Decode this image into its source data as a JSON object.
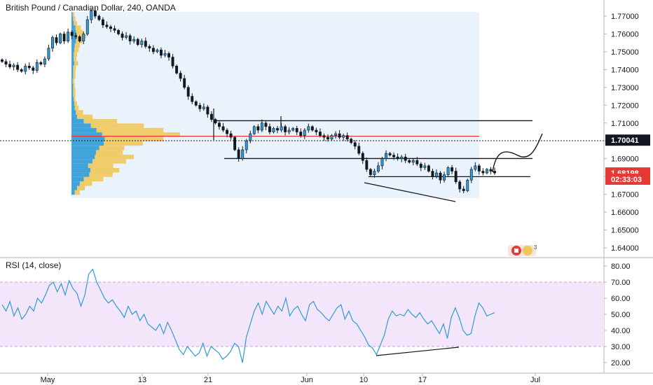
{
  "chart_data": [
    {
      "type": "candlestick",
      "title": "British Pound / Canadian Dollar, 240, OANDA",
      "price_axis": {
        "ticks": [
          "1.77000",
          "1.76000",
          "1.75000",
          "1.74000",
          "1.73000",
          "1.72000",
          "1.71000",
          "1.70000",
          "1.69000",
          "1.68000",
          "1.67000",
          "1.66000",
          "1.65000",
          "1.64000"
        ],
        "range": [
          1.633,
          1.778
        ]
      },
      "time_axis": {
        "ticks": [
          "May",
          "13",
          "21",
          "Jun",
          "10",
          "17",
          "Jul"
        ]
      },
      "price_labels": [
        {
          "text": "1.70041",
          "value": 1.70041,
          "style": "dark"
        },
        {
          "text": "1.68198",
          "value": 1.68198,
          "style": "red"
        },
        {
          "text": "02:33:03",
          "value": 1.6785,
          "style": "red"
        }
      ],
      "levels": [
        {
          "kind": "resistance",
          "value": 1.7113,
          "color": "#131722"
        },
        {
          "kind": "poc",
          "value": 1.7026,
          "color": "#e53935"
        },
        {
          "kind": "support",
          "value": 1.6901,
          "color": "#131722"
        },
        {
          "kind": "support",
          "value": 1.6799,
          "color": "#131722"
        }
      ],
      "series": [
        {
          "values": [
            1.7445,
            1.743,
            1.7415,
            1.7425,
            1.74,
            1.739,
            1.742,
            1.741,
            1.7395,
            1.744,
            1.743,
            1.746,
            1.752,
            1.758,
            1.755,
            1.76,
            1.756,
            1.761,
            1.759,
            1.7585,
            1.756,
            1.76,
            1.768,
            1.773,
            1.77,
            1.768,
            1.765,
            1.764,
            1.763,
            1.762,
            1.76,
            1.758,
            1.759,
            1.756,
            1.757,
            1.754,
            1.756,
            1.753,
            1.752,
            1.75,
            1.751,
            1.748,
            1.749,
            1.747,
            1.742,
            1.738,
            1.735,
            1.73,
            1.725,
            1.722,
            1.72,
            1.718,
            1.719,
            1.715,
            1.712,
            1.71,
            1.708,
            1.706,
            1.704,
            1.702,
            1.695,
            1.69,
            1.695,
            1.7,
            1.704,
            1.708,
            1.706,
            1.71,
            1.708,
            1.705,
            1.707,
            1.706,
            1.708,
            1.705,
            1.706,
            1.707,
            1.705,
            1.703,
            1.706,
            1.708,
            1.706,
            1.705,
            1.703,
            1.702,
            1.701,
            1.703,
            1.704,
            1.702,
            1.703,
            1.701,
            1.699,
            1.697,
            1.693,
            1.689,
            1.684,
            1.681,
            1.683,
            1.686,
            1.69,
            1.693,
            1.692,
            1.691,
            1.69,
            1.691,
            1.689,
            1.688,
            1.689,
            1.687,
            1.685,
            1.686,
            1.683,
            1.68,
            1.682,
            1.678,
            1.681,
            1.685,
            1.683,
            1.677,
            1.673,
            1.672,
            1.678,
            1.684,
            1.686,
            1.683,
            1.682,
            1.684,
            1.683,
            1.682
          ]
        }
      ],
      "volume_profile": {
        "range": [
          1.669,
          1.771
        ],
        "up_color": "#f0c65a",
        "down_color": "#2e9bd6",
        "bins": [
          {
            "price": 1.771,
            "up": 3,
            "down": 2
          },
          {
            "price": 1.7685,
            "up": 4,
            "down": 3
          },
          {
            "price": 1.766,
            "up": 6,
            "down": 4
          },
          {
            "price": 1.7635,
            "up": 10,
            "down": 7
          },
          {
            "price": 1.761,
            "up": 13,
            "down": 8
          },
          {
            "price": 1.7585,
            "up": 16,
            "down": 10
          },
          {
            "price": 1.756,
            "up": 12,
            "down": 8
          },
          {
            "price": 1.7535,
            "up": 9,
            "down": 6
          },
          {
            "price": 1.751,
            "up": 8,
            "down": 5
          },
          {
            "price": 1.7485,
            "up": 6,
            "down": 4
          },
          {
            "price": 1.746,
            "up": 5,
            "down": 4
          },
          {
            "price": 1.7435,
            "up": 7,
            "down": 5
          },
          {
            "price": 1.741,
            "up": 5,
            "down": 3
          },
          {
            "price": 1.7385,
            "up": 4,
            "down": 3
          },
          {
            "price": 1.736,
            "up": 4,
            "down": 3
          },
          {
            "price": 1.7335,
            "up": 3,
            "down": 2
          },
          {
            "price": 1.731,
            "up": 3,
            "down": 3
          },
          {
            "price": 1.7285,
            "up": 4,
            "down": 3
          },
          {
            "price": 1.726,
            "up": 4,
            "down": 3
          },
          {
            "price": 1.7235,
            "up": 3,
            "down": 4
          },
          {
            "price": 1.721,
            "up": 5,
            "down": 5
          },
          {
            "price": 1.7185,
            "up": 7,
            "down": 6
          },
          {
            "price": 1.716,
            "up": 13,
            "down": 8
          },
          {
            "price": 1.7135,
            "up": 28,
            "down": 10
          },
          {
            "price": 1.711,
            "up": 60,
            "down": 22
          },
          {
            "price": 1.7085,
            "up": 95,
            "down": 35
          },
          {
            "price": 1.706,
            "up": 120,
            "down": 45
          },
          {
            "price": 1.7035,
            "up": 140,
            "down": 55
          },
          {
            "price": 1.701,
            "up": 105,
            "down": 60
          },
          {
            "price": 1.6985,
            "up": 70,
            "down": 58
          },
          {
            "price": 1.696,
            "up": 45,
            "down": 50
          },
          {
            "price": 1.6935,
            "up": 48,
            "down": 44
          },
          {
            "price": 1.691,
            "up": 70,
            "down": 42
          },
          {
            "price": 1.6885,
            "up": 60,
            "down": 38
          },
          {
            "price": 1.686,
            "up": 45,
            "down": 30
          },
          {
            "price": 1.6835,
            "up": 52,
            "down": 34
          },
          {
            "price": 1.681,
            "up": 42,
            "down": 32
          },
          {
            "price": 1.6785,
            "up": 35,
            "down": 22
          },
          {
            "price": 1.676,
            "up": 22,
            "down": 15
          },
          {
            "price": 1.6735,
            "up": 14,
            "down": 10
          },
          {
            "price": 1.671,
            "up": 9,
            "down": 6
          }
        ]
      }
    },
    {
      "type": "line",
      "title": "RSI (14, close)",
      "y_axis": {
        "ticks": [
          "80.00",
          "70.00",
          "60.00",
          "50.00",
          "40.00",
          "30.00",
          "20.00"
        ],
        "range": [
          14,
          87
        ]
      },
      "band": [
        30,
        70
      ],
      "line_color": "#2e9bd6",
      "series": [
        {
          "values": [
            56,
            52,
            58,
            49,
            54,
            47,
            50,
            55,
            52,
            60,
            57,
            62,
            68,
            70,
            64,
            69,
            62,
            71,
            66,
            63,
            55,
            62,
            75,
            78,
            70,
            65,
            60,
            57,
            59,
            55,
            52,
            48,
            55,
            50,
            52,
            46,
            50,
            44,
            42,
            40,
            44,
            38,
            45,
            40,
            34,
            28,
            25,
            30,
            27,
            24,
            26,
            32,
            24,
            30,
            28,
            26,
            22,
            24,
            27,
            32,
            30,
            20,
            36,
            44,
            52,
            57,
            50,
            58,
            54,
            50,
            55,
            52,
            60,
            49,
            53,
            55,
            50,
            46,
            56,
            58,
            53,
            51,
            48,
            46,
            50,
            54,
            56,
            47,
            52,
            46,
            44,
            40,
            36,
            31,
            29,
            25,
            31,
            37,
            47,
            52,
            49,
            50,
            49,
            53,
            50,
            48,
            51,
            47,
            44,
            46,
            42,
            38,
            44,
            35,
            48,
            54,
            48,
            40,
            37,
            38,
            49,
            57,
            54,
            49,
            50,
            51
          ]
        }
      ]
    }
  ],
  "watermark": {
    "icon": "canada-flag-icon",
    "badge": "3"
  }
}
